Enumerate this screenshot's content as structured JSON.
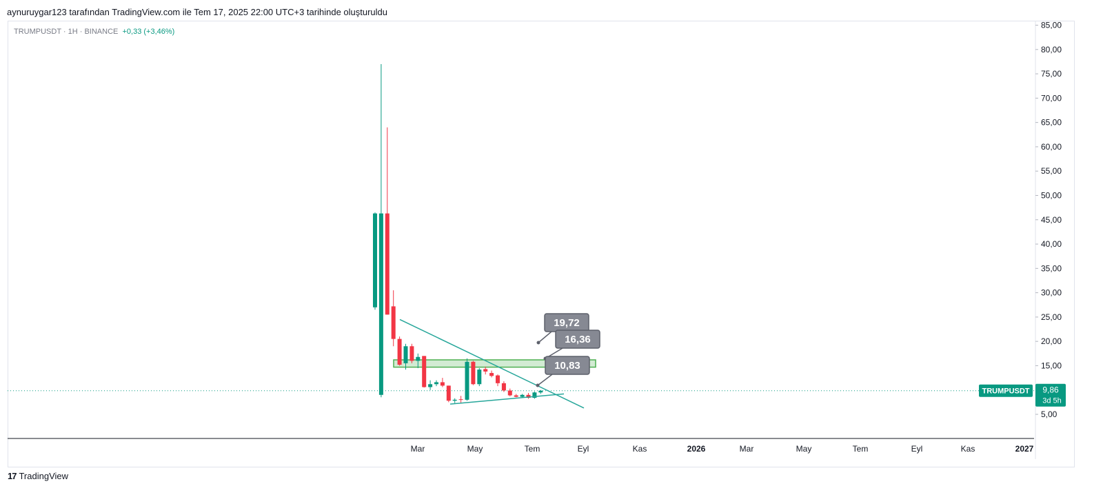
{
  "header": {
    "caption": "aynuruygar123 tarafından TradingView.com ile Tem 17, 2025 22:00 UTC+3 tarihinde oluşturuldu"
  },
  "legend": {
    "symbol": "TRUMPUSDT · 1H · BINANCE",
    "change": "+0,33 (+3,46%)"
  },
  "footer": {
    "brand": "TradingView"
  },
  "colors": {
    "up": "#089981",
    "down": "#f23645",
    "trendline": "#26a69a",
    "zone": "#4caf50",
    "callout": "#868993"
  },
  "chart_data": {
    "type": "candlestick",
    "title": "",
    "symbol": "TRUMPUSDT",
    "exchange": "BINANCE",
    "interval": "1H",
    "y_axis": {
      "position": "right",
      "ylim": [
        0,
        85
      ],
      "ticks": [
        "85,00",
        "80,00",
        "75,00",
        "70,00",
        "65,00",
        "60,00",
        "55,00",
        "50,00",
        "45,00",
        "40,00",
        "35,00",
        "30,00",
        "25,00",
        "20,00",
        "15,00",
        "5,00"
      ]
    },
    "x_axis": {
      "ticks": [
        "Mar",
        "May",
        "Tem",
        "Eyl",
        "Kas",
        "2026",
        "Mar",
        "May",
        "Tem",
        "Eyl",
        "Kas",
        "2027"
      ],
      "bold_ticks": [
        "2026",
        "2027"
      ]
    },
    "candles": [
      {
        "open": 27.0,
        "high": 46.5,
        "low": 26.5,
        "close": 46.3
      },
      {
        "open": 9.0,
        "high": 77.0,
        "low": 8.5,
        "close": 46.3
      },
      {
        "open": 46.3,
        "high": 64.0,
        "low": 25.5,
        "close": 25.5
      },
      {
        "open": 27.2,
        "high": 30.5,
        "low": 19.0,
        "close": 20.5
      },
      {
        "open": 20.5,
        "high": 21.0,
        "low": 15.0,
        "close": 15.2
      },
      {
        "open": 15.5,
        "high": 19.5,
        "low": 14.2,
        "close": 19.0
      },
      {
        "open": 19.0,
        "high": 19.5,
        "low": 15.5,
        "close": 16.0
      },
      {
        "open": 16.0,
        "high": 17.5,
        "low": 14.5,
        "close": 16.8
      },
      {
        "open": 17.0,
        "high": 17.0,
        "low": 10.5,
        "close": 10.6
      },
      {
        "open": 10.6,
        "high": 12.0,
        "low": 10.0,
        "close": 11.2
      },
      {
        "open": 11.2,
        "high": 12.0,
        "low": 10.8,
        "close": 11.6
      },
      {
        "open": 11.6,
        "high": 12.5,
        "low": 10.6,
        "close": 10.9
      },
      {
        "open": 10.9,
        "high": 10.9,
        "low": 7.5,
        "close": 7.8
      },
      {
        "open": 7.8,
        "high": 8.3,
        "low": 7.3,
        "close": 8.0
      },
      {
        "open": 8.1,
        "high": 8.8,
        "low": 7.4,
        "close": 8.0
      },
      {
        "open": 8.0,
        "high": 16.5,
        "low": 7.8,
        "close": 15.8
      },
      {
        "open": 15.8,
        "high": 16.0,
        "low": 11.0,
        "close": 11.2
      },
      {
        "open": 11.2,
        "high": 14.5,
        "low": 10.8,
        "close": 14.2
      },
      {
        "open": 14.3,
        "high": 14.8,
        "low": 13.2,
        "close": 13.8
      },
      {
        "open": 13.5,
        "high": 14.0,
        "low": 12.6,
        "close": 12.9
      },
      {
        "open": 13.0,
        "high": 13.2,
        "low": 10.8,
        "close": 11.4
      },
      {
        "open": 11.4,
        "high": 11.8,
        "low": 9.6,
        "close": 9.9
      },
      {
        "open": 9.9,
        "high": 10.3,
        "low": 8.7,
        "close": 8.9
      },
      {
        "open": 8.9,
        "high": 9.2,
        "low": 8.5,
        "close": 8.6
      },
      {
        "open": 8.6,
        "high": 9.2,
        "low": 8.5,
        "close": 9.0
      },
      {
        "open": 9.0,
        "high": 9.4,
        "low": 8.2,
        "close": 8.4
      },
      {
        "open": 8.4,
        "high": 9.7,
        "low": 8.2,
        "close": 9.5
      },
      {
        "open": 9.5,
        "high": 10.0,
        "low": 9.2,
        "close": 9.86
      }
    ],
    "zone": {
      "top": 16.2,
      "bottom": 14.7
    },
    "trendlines": [
      {
        "name": "descending",
        "from": {
          "start_price": 24.5
        },
        "to": {
          "end_price": 6.3
        }
      },
      {
        "name": "ascending",
        "from": {
          "start_price": 7.1
        },
        "to": {
          "end_price": 9.2
        }
      }
    ],
    "callouts": [
      {
        "label": "19,72",
        "point_price": 19.5
      },
      {
        "label": "16,36",
        "point_price": 16.3
      },
      {
        "label": "10,83",
        "point_price": 10.9
      }
    ],
    "last_price": {
      "label": "TRUMPUSDT",
      "value": "9,86",
      "countdown": "3d 5h"
    }
  }
}
